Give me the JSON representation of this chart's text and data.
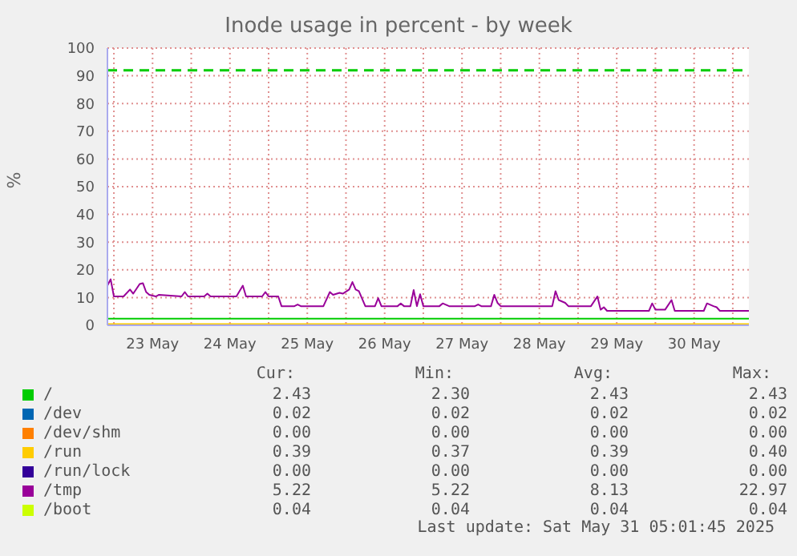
{
  "chart_data": {
    "type": "line",
    "title": "Inode usage in percent - by week",
    "ylabel": "%",
    "xlim": [
      "2025-05-22T22:00",
      "2025-05-31T05:00"
    ],
    "ylim": [
      0,
      100
    ],
    "yticks": [
      0,
      10,
      20,
      30,
      40,
      50,
      60,
      70,
      80,
      90,
      100
    ],
    "xticks": [
      {
        "value": "2025-05-23T00:00",
        "label": null
      },
      {
        "value": "2025-05-23T12:00",
        "label": "23 May"
      },
      {
        "value": "2025-05-24T00:00",
        "label": null
      },
      {
        "value": "2025-05-24T12:00",
        "label": "24 May"
      },
      {
        "value": "2025-05-25T00:00",
        "label": null
      },
      {
        "value": "2025-05-25T12:00",
        "label": "25 May"
      },
      {
        "value": "2025-05-26T00:00",
        "label": null
      },
      {
        "value": "2025-05-26T12:00",
        "label": "26 May"
      },
      {
        "value": "2025-05-27T00:00",
        "label": null
      },
      {
        "value": "2025-05-27T12:00",
        "label": "27 May"
      },
      {
        "value": "2025-05-28T00:00",
        "label": null
      },
      {
        "value": "2025-05-28T12:00",
        "label": "28 May"
      },
      {
        "value": "2025-05-29T00:00",
        "label": null
      },
      {
        "value": "2025-05-29T12:00",
        "label": "29 May"
      },
      {
        "value": "2025-05-30T00:00",
        "label": null
      },
      {
        "value": "2025-05-30T12:00",
        "label": "30 May"
      },
      {
        "value": "2025-05-31T00:00",
        "label": null
      }
    ],
    "grid": true,
    "legend": "bottom",
    "marker": "none",
    "ref_lines": [
      {
        "axis": "y",
        "value": 92,
        "color": "#00cc00",
        "line_style": "dashed"
      }
    ],
    "series": [
      {
        "name": "/",
        "color": "#00cc00",
        "x": [
          "2025-05-22T22:00",
          "2025-05-31T05:00"
        ],
        "values": [
          2.4,
          2.4
        ]
      },
      {
        "name": "/dev",
        "color": "#0066b3"
      },
      {
        "name": "/dev/shm",
        "color": "#ff8000"
      },
      {
        "name": "/run",
        "color": "#ffcc00",
        "x": [
          "2025-05-22T22:00",
          "2025-05-31T05:00"
        ],
        "values": [
          0.4,
          0.4
        ]
      },
      {
        "name": "/run/lock",
        "color": "#330099"
      },
      {
        "name": "/tmp",
        "color": "#990099",
        "x": [
          "2025-05-22T22:00",
          "2025-05-22T23:00",
          "2025-05-23T00:00",
          "2025-05-23T03:00",
          "2025-05-23T05:00",
          "2025-05-23T06:00",
          "2025-05-23T08:00",
          "2025-05-23T09:00",
          "2025-05-23T10:00",
          "2025-05-23T11:00",
          "2025-05-23T13:00",
          "2025-05-23T14:00",
          "2025-05-23T21:00",
          "2025-05-23T22:00",
          "2025-05-23T23:00",
          "2025-05-24T04:00",
          "2025-05-24T05:00",
          "2025-05-24T06:00",
          "2025-05-24T14:00",
          "2025-05-24T16:00",
          "2025-05-24T17:00",
          "2025-05-24T22:00",
          "2025-05-24T23:00",
          "2025-05-25T00:00",
          "2025-05-25T03:00",
          "2025-05-25T04:00",
          "2025-05-25T08:00",
          "2025-05-25T09:00",
          "2025-05-25T10:00",
          "2025-05-25T17:00",
          "2025-05-25T19:00",
          "2025-05-25T20:00",
          "2025-05-25T22:00",
          "2025-05-25T23:00",
          "2025-05-26T01:00",
          "2025-05-26T02:00",
          "2025-05-26T03:00",
          "2025-05-26T04:00",
          "2025-05-26T06:00",
          "2025-05-26T09:00",
          "2025-05-26T10:00",
          "2025-05-26T11:00",
          "2025-05-26T16:00",
          "2025-05-26T17:00",
          "2025-05-26T18:00",
          "2025-05-26T20:00",
          "2025-05-26T21:00",
          "2025-05-26T22:00",
          "2025-05-26T23:00",
          "2025-05-27T00:00",
          "2025-05-27T05:00",
          "2025-05-27T06:00",
          "2025-05-27T08:00",
          "2025-05-27T16:00",
          "2025-05-27T17:00",
          "2025-05-27T18:00",
          "2025-05-27T21:00",
          "2025-05-27T22:00",
          "2025-05-27T23:00",
          "2025-05-28T00:00",
          "2025-05-28T16:00",
          "2025-05-28T17:00",
          "2025-05-28T18:00",
          "2025-05-28T20:00",
          "2025-05-28T21:00",
          "2025-05-29T04:00",
          "2025-05-29T06:00",
          "2025-05-29T07:00",
          "2025-05-29T08:00",
          "2025-05-29T09:00",
          "2025-05-29T22:00",
          "2025-05-29T23:00",
          "2025-05-30T00:00",
          "2025-05-30T03:00",
          "2025-05-30T05:00",
          "2025-05-30T06:00",
          "2025-05-30T15:00",
          "2025-05-30T16:00",
          "2025-05-30T18:00",
          "2025-05-30T19:00",
          "2025-05-30T20:00",
          "2025-05-31T05:00"
        ],
        "values": [
          14.3,
          16.6,
          10.4,
          10.4,
          12.9,
          11.4,
          14.9,
          15.2,
          12.0,
          11.0,
          10.4,
          11.0,
          10.4,
          12.0,
          10.4,
          10.4,
          11.4,
          10.4,
          10.4,
          14.3,
          10.4,
          10.4,
          12.0,
          10.4,
          10.4,
          6.9,
          6.9,
          7.5,
          6.9,
          6.9,
          12.0,
          11.0,
          11.7,
          11.4,
          12.9,
          15.6,
          12.9,
          12.3,
          6.9,
          6.9,
          9.8,
          6.9,
          6.9,
          7.9,
          6.9,
          6.9,
          12.7,
          6.9,
          11.2,
          6.9,
          6.9,
          7.9,
          6.9,
          6.9,
          7.5,
          6.9,
          6.9,
          11.0,
          8.1,
          6.9,
          6.9,
          12.3,
          9.1,
          8.1,
          6.9,
          6.9,
          10.4,
          5.6,
          6.5,
          5.2,
          5.2,
          7.9,
          5.6,
          5.6,
          9.1,
          5.2,
          5.2,
          7.9,
          6.9,
          6.5,
          5.2,
          5.2
        ]
      },
      {
        "name": "/boot",
        "color": "#ccff00"
      }
    ],
    "annotations": [
      "Cur:",
      "Min:",
      "Avg:",
      "Max:",
      "2.43",
      "2.30",
      "2.43",
      "2.43",
      "0.02",
      "0.02",
      "0.02",
      "0.02",
      "0.00",
      "0.00",
      "0.00",
      "0.00",
      "0.39",
      "0.37",
      "0.39",
      "0.40",
      "0.00",
      "0.00",
      "0.00",
      "0.00",
      "5.22",
      "5.22",
      "8.13",
      "22.97",
      "0.04",
      "0.04",
      "0.04",
      "0.04",
      "Last update: Sat May 31 05:01:45 2025"
    ]
  }
}
